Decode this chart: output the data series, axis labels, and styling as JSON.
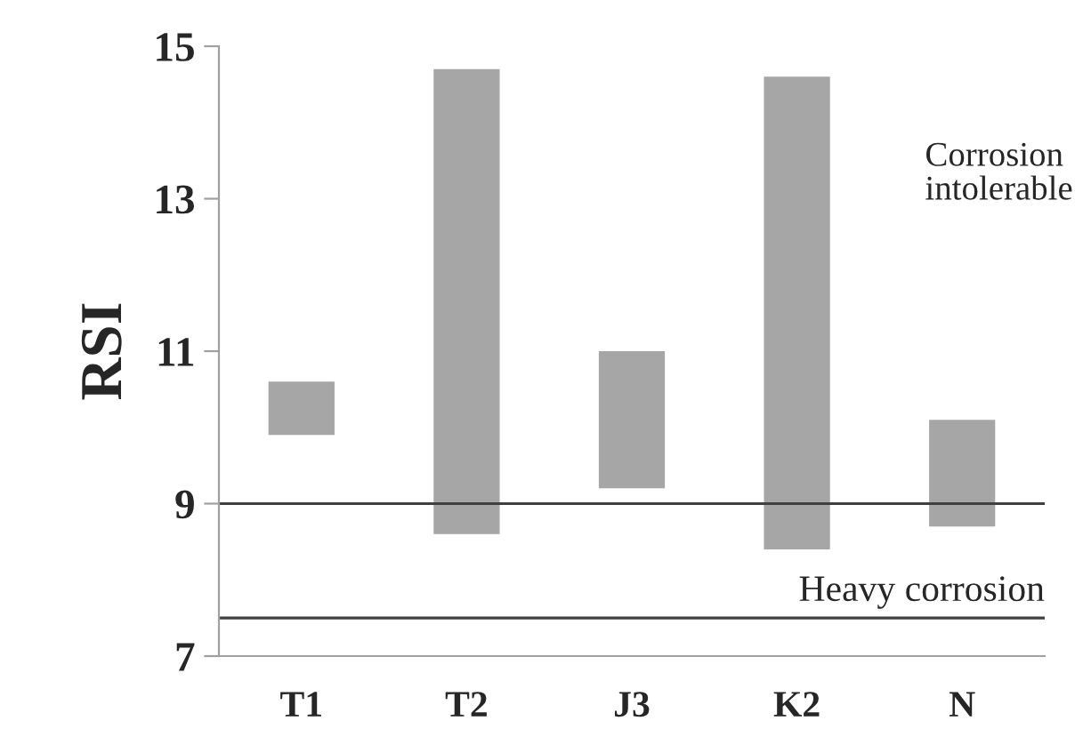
{
  "chart_data": {
    "type": "bar",
    "ylabel": "RSI",
    "categories": [
      "T1",
      "T2",
      "J3",
      "K2",
      "N"
    ],
    "base": [
      9.9,
      8.6,
      9.2,
      8.4,
      8.7
    ],
    "values": [
      0.7,
      6.1,
      1.8,
      6.2,
      1.4
    ],
    "color": "#a6a6a6",
    "ylim": [
      7,
      15
    ],
    "yticks": [
      7,
      9,
      11,
      13,
      15
    ],
    "ref_lines": [
      {
        "axis": "y",
        "value": 9,
        "color": "#404040"
      },
      {
        "axis": "y",
        "value": 7.5,
        "label": "Heavy corrosion",
        "color": "#404040"
      }
    ],
    "annotations": [
      "Corrosion\nintolerable"
    ],
    "grid": false
  }
}
